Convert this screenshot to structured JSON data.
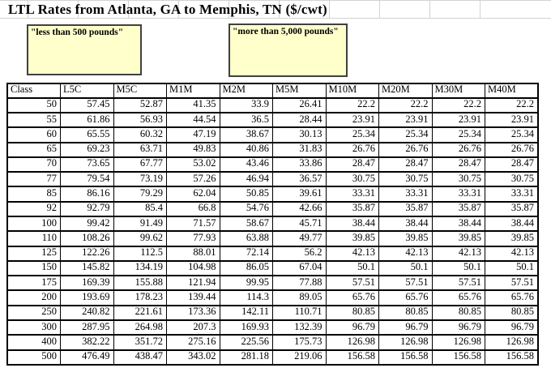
{
  "title": "LTL Rates from Atlanta, GA to Memphis, TN ($/cwt)",
  "callouts": {
    "less_than": "\"less than 500 pounds\"",
    "more_than": "\"more than 5,000 pounds\""
  },
  "chart_data": {
    "type": "table",
    "title": "LTL Rates from Atlanta, GA to Memphis, TN ($/cwt)",
    "columns": [
      "Class",
      "L5C",
      "M5C",
      "M1M",
      "M2M",
      "M5M",
      "M10M",
      "M20M",
      "M30M",
      "M40M"
    ],
    "rows": [
      [
        "50",
        "57.45",
        "52.87",
        "41.35",
        "33.9",
        "26.41",
        "22.2",
        "22.2",
        "22.2",
        "22.2"
      ],
      [
        "55",
        "61.86",
        "56.93",
        "44.54",
        "36.5",
        "28.44",
        "23.91",
        "23.91",
        "23.91",
        "23.91"
      ],
      [
        "60",
        "65.55",
        "60.32",
        "47.19",
        "38.67",
        "30.13",
        "25.34",
        "25.34",
        "25.34",
        "25.34"
      ],
      [
        "65",
        "69.23",
        "63.71",
        "49.83",
        "40.86",
        "31.83",
        "26.76",
        "26.76",
        "26.76",
        "26.76"
      ],
      [
        "70",
        "73.65",
        "67.77",
        "53.02",
        "43.46",
        "33.86",
        "28.47",
        "28.47",
        "28.47",
        "28.47"
      ],
      [
        "77",
        "79.54",
        "73.19",
        "57.26",
        "46.94",
        "36.57",
        "30.75",
        "30.75",
        "30.75",
        "30.75"
      ],
      [
        "85",
        "86.16",
        "79.29",
        "62.04",
        "50.85",
        "39.61",
        "33.31",
        "33.31",
        "33.31",
        "33.31"
      ],
      [
        "92",
        "92.79",
        "85.4",
        "66.8",
        "54.76",
        "42.66",
        "35.87",
        "35.87",
        "35.87",
        "35.87"
      ],
      [
        "100",
        "99.42",
        "91.49",
        "71.57",
        "58.67",
        "45.71",
        "38.44",
        "38.44",
        "38.44",
        "38.44"
      ],
      [
        "110",
        "108.26",
        "99.62",
        "77.93",
        "63.88",
        "49.77",
        "39.85",
        "39.85",
        "39.85",
        "39.85"
      ],
      [
        "125",
        "122.26",
        "112.5",
        "88.01",
        "72.14",
        "56.2",
        "42.13",
        "42.13",
        "42.13",
        "42.13"
      ],
      [
        "150",
        "145.82",
        "134.19",
        "104.98",
        "86.05",
        "67.04",
        "50.1",
        "50.1",
        "50.1",
        "50.1"
      ],
      [
        "175",
        "169.39",
        "155.88",
        "121.94",
        "99.95",
        "77.88",
        "57.51",
        "57.51",
        "57.51",
        "57.51"
      ],
      [
        "200",
        "193.69",
        "178.23",
        "139.44",
        "114.3",
        "89.05",
        "65.76",
        "65.76",
        "65.76",
        "65.76"
      ],
      [
        "250",
        "240.82",
        "221.61",
        "173.36",
        "142.11",
        "110.71",
        "80.85",
        "80.85",
        "80.85",
        "80.85"
      ],
      [
        "300",
        "287.95",
        "264.98",
        "207.3",
        "169.93",
        "132.39",
        "96.79",
        "96.79",
        "96.79",
        "96.79"
      ],
      [
        "400",
        "382.22",
        "351.72",
        "275.16",
        "225.56",
        "175.73",
        "126.98",
        "126.98",
        "126.98",
        "126.98"
      ],
      [
        "500",
        "476.49",
        "438.47",
        "343.02",
        "281.18",
        "219.06",
        "156.58",
        "156.58",
        "156.58",
        "156.58"
      ]
    ]
  },
  "colors": {
    "callout_bg": "#ffffcc",
    "callout_border": "#404040",
    "gridline": "#d2d2d2",
    "table_border": "#000000"
  }
}
